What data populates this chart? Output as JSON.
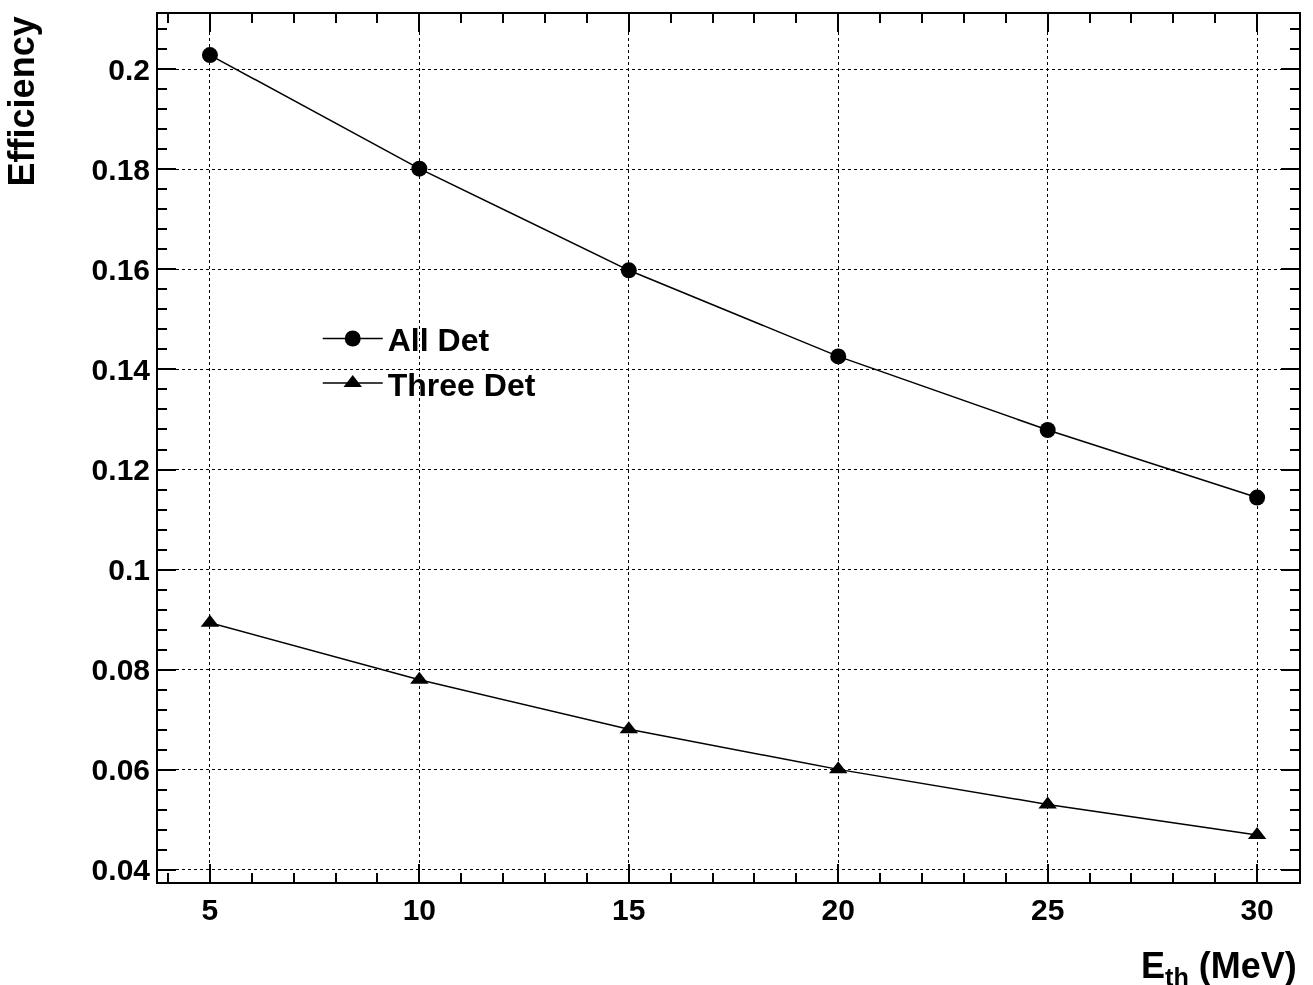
{
  "chart_data": {
    "type": "line",
    "xlabel": "E$_{th}$ (MeV)",
    "ylabel": "Efficiency",
    "x": [
      5,
      10,
      15,
      20,
      25,
      30
    ],
    "series": [
      {
        "name": "All Det",
        "color": "#000000",
        "marker": "circle",
        "values": [
          0.2028,
          0.1801,
          0.1598,
          0.1426,
          0.1279,
          0.1144
        ]
      },
      {
        "name": "Three Det",
        "color": "#000000",
        "marker": "triangle",
        "values": [
          0.0894,
          0.078,
          0.0681,
          0.0601,
          0.0531,
          0.047
        ]
      }
    ],
    "xlim": [
      3.76,
      31.0
    ],
    "ylim": [
      0.0376,
      0.211
    ],
    "xticks": [
      5,
      10,
      15,
      20,
      25,
      30
    ],
    "yticks": [
      0.04,
      0.06,
      0.08,
      0.1,
      0.12,
      0.14,
      0.16,
      0.18,
      0.2
    ],
    "grid": true,
    "legend": "left",
    "line_style": "solid"
  }
}
